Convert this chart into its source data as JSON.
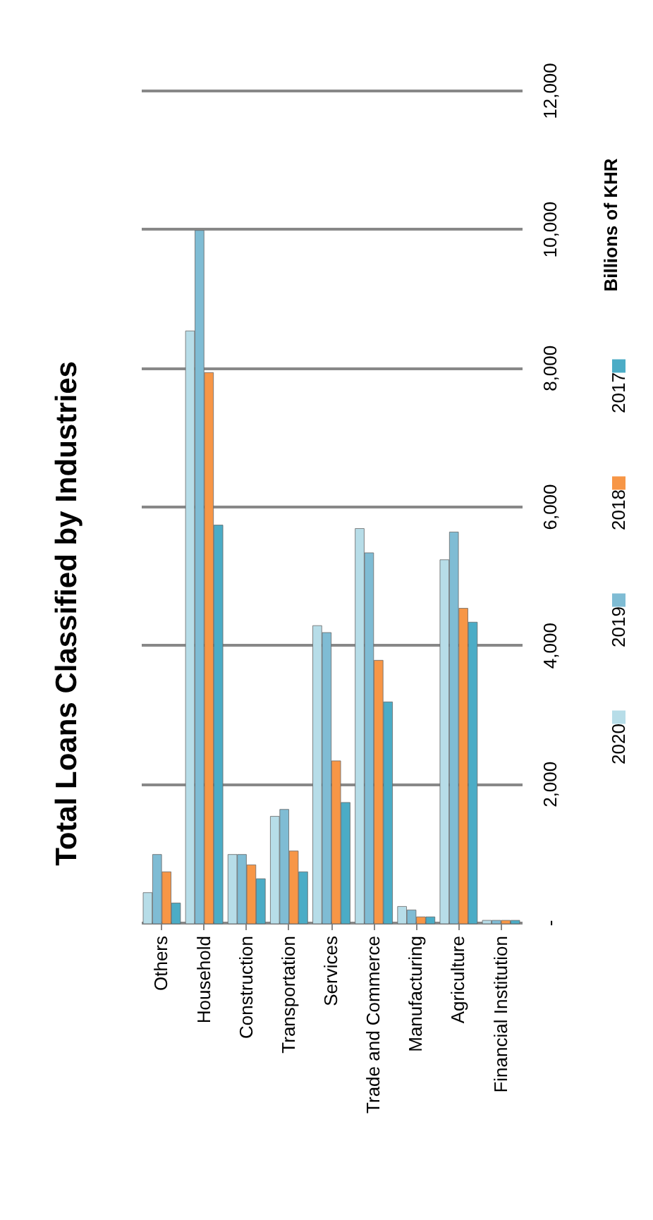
{
  "chart_data": {
    "type": "bar",
    "title": "Total Loans Classified by Industries",
    "ylabel": "Billions of KHR",
    "categories": [
      "Others",
      "Household",
      "Construction",
      "Transportation",
      "Services",
      "Trade and Commerce",
      "Manufacturing",
      "Agriculture",
      "Financial Institution"
    ],
    "series": [
      {
        "name": "2020",
        "color": "#b7dde8",
        "values": [
          450,
          8550,
          1000,
          1550,
          4300,
          5700,
          250,
          5250,
          50
        ]
      },
      {
        "name": "2019",
        "color": "#7fbcd4",
        "values": [
          1000,
          10000,
          1000,
          1650,
          4200,
          5350,
          200,
          5650,
          50
        ]
      },
      {
        "name": "2018",
        "color": "#f79646",
        "values": [
          750,
          7950,
          850,
          1050,
          2350,
          3800,
          100,
          4550,
          50
        ]
      },
      {
        "name": "2017",
        "color": "#4bacc6",
        "values": [
          300,
          5750,
          650,
          750,
          1750,
          3200,
          100,
          4350,
          50
        ]
      }
    ],
    "ylim": [
      0,
      12000
    ],
    "yticks": [
      {
        "value": 0,
        "label": "-"
      },
      {
        "value": 2000,
        "label": "2,000"
      },
      {
        "value": 4000,
        "label": "4,000"
      },
      {
        "value": 6000,
        "label": "6,000"
      },
      {
        "value": 8000,
        "label": "8,000"
      },
      {
        "value": 10000,
        "label": "10,000"
      },
      {
        "value": 12000,
        "label": "12,000"
      }
    ],
    "grid": "y",
    "legend": "right"
  }
}
